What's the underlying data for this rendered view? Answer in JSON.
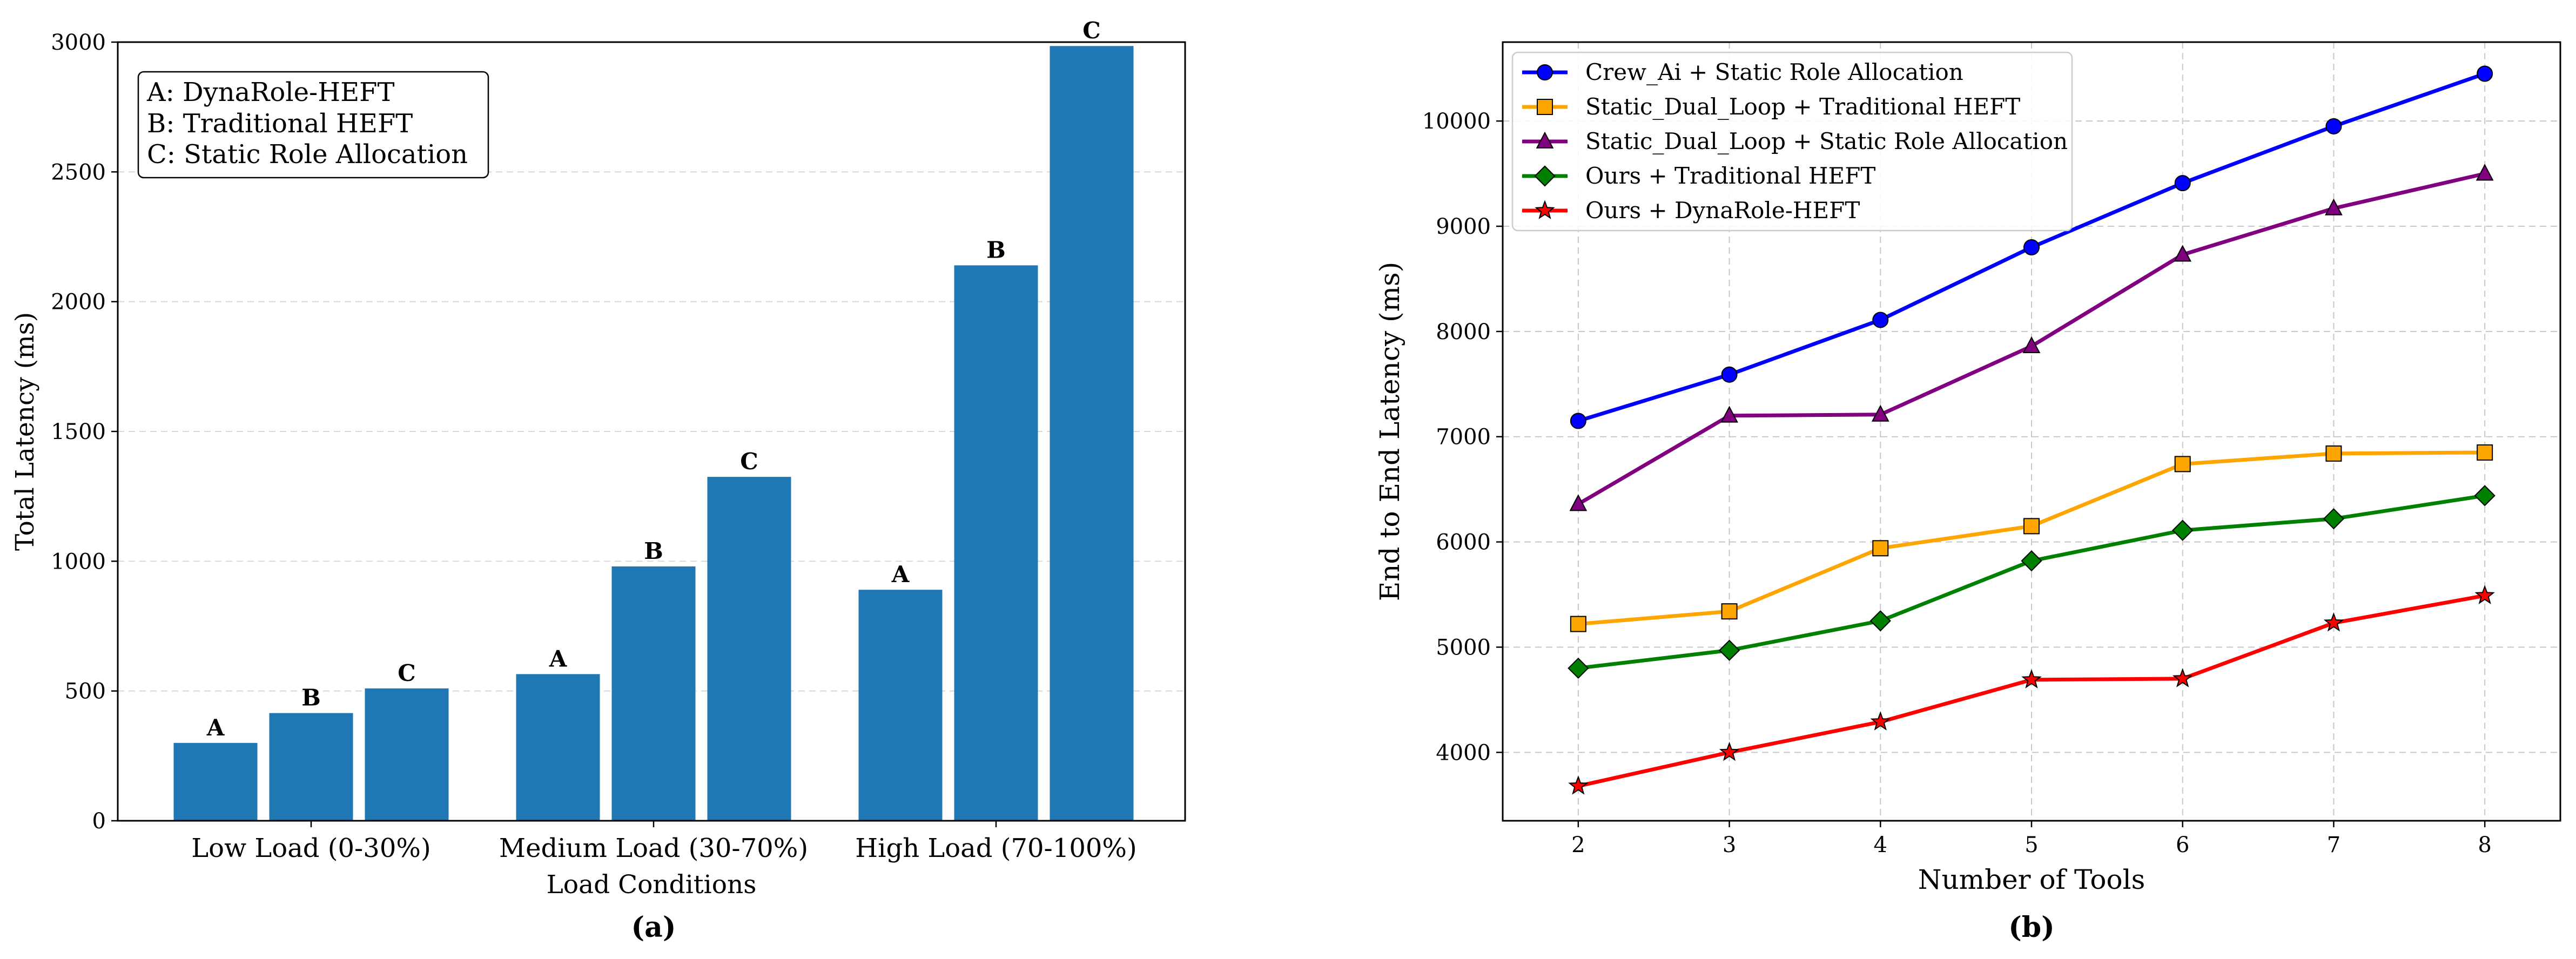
{
  "chart_data": [
    {
      "type": "bar",
      "panel_label": "(a)",
      "xlabel": "Load Conditions",
      "ylabel": "Total Latency (ms)",
      "ylim": [
        0,
        3000
      ],
      "yticks": [
        0,
        500,
        1000,
        1500,
        2000,
        2500,
        3000
      ],
      "grid": "y-dashed",
      "bar_color": "#1f77b4",
      "categories": [
        "Low Load (0-30%)",
        "Medium Load (30-70%)",
        "High Load (70-100%)"
      ],
      "series": [
        {
          "name": "A",
          "values": [
            300,
            565,
            890
          ]
        },
        {
          "name": "B",
          "values": [
            415,
            980,
            2140
          ]
        },
        {
          "name": "C",
          "values": [
            510,
            1325,
            2985
          ]
        }
      ],
      "legend_box": {
        "placement": "top-left",
        "lines": [
          "A: DynaRole-HEFT",
          "B: Traditional HEFT",
          "C: Static Role Allocation"
        ]
      }
    },
    {
      "type": "line",
      "panel_label": "(b)",
      "xlabel": "Number of Tools",
      "ylabel": "End to End Latency (ms)",
      "x": [
        2,
        3,
        4,
        5,
        6,
        7,
        8
      ],
      "xlim": [
        1.5,
        8.5
      ],
      "ylim": [
        3350,
        10750
      ],
      "yticks": [
        4000,
        5000,
        6000,
        7000,
        8000,
        9000,
        10000
      ],
      "grid": "both-dashed",
      "legend_placement": "top-left",
      "series": [
        {
          "name": "Crew_Ai + Static Role Allocation",
          "color": "#0000ff",
          "marker": "circle",
          "values": [
            7150,
            7590,
            8110,
            8800,
            9410,
            9950,
            10450
          ]
        },
        {
          "name": "Static_Dual_Loop + Traditional HEFT",
          "color": "#ffa500",
          "marker": "square",
          "values": [
            5220,
            5340,
            5940,
            6150,
            6740,
            6840,
            6850
          ]
        },
        {
          "name": "Static_Dual_Loop + Static Role Allocation",
          "color": "#800080",
          "marker": "triangle",
          "values": [
            6360,
            7200,
            7210,
            7860,
            8730,
            9170,
            9500
          ]
        },
        {
          "name": "Ours + Traditional HEFT",
          "color": "#008000",
          "marker": "diamond",
          "values": [
            4800,
            4970,
            5250,
            5820,
            6110,
            6220,
            6440
          ]
        },
        {
          "name": "Ours + DynaRole-HEFT",
          "color": "#ff0000",
          "marker": "star",
          "values": [
            3680,
            4000,
            4290,
            4690,
            4700,
            5230,
            5490
          ]
        }
      ]
    }
  ]
}
